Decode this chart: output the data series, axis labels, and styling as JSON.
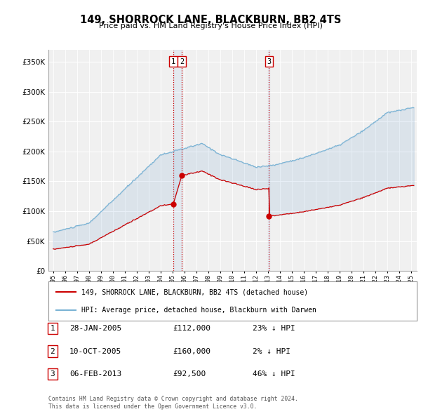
{
  "title": "149, SHORROCK LANE, BLACKBURN, BB2 4TS",
  "subtitle": "Price paid vs. HM Land Registry's House Price Index (HPI)",
  "legend_line1": "149, SHORROCK LANE, BLACKBURN, BB2 4TS (detached house)",
  "legend_line2": "HPI: Average price, detached house, Blackburn with Darwen",
  "footer1": "Contains HM Land Registry data © Crown copyright and database right 2024.",
  "footer2": "This data is licensed under the Open Government Licence v3.0.",
  "transactions": [
    {
      "num": 1,
      "date": "28-JAN-2005",
      "price": "£112,000",
      "pct": "23% ↓ HPI",
      "year": 2005.07,
      "price_val": 112000
    },
    {
      "num": 2,
      "date": "10-OCT-2005",
      "price": "£160,000",
      "pct": "2% ↓ HPI",
      "year": 2005.79,
      "price_val": 160000
    },
    {
      "num": 3,
      "date": "06-FEB-2013",
      "price": "£92,500",
      "pct": "46% ↓ HPI",
      "year": 2013.1,
      "price_val": 92500
    }
  ],
  "hpi_color": "#7ab3d4",
  "price_color": "#cc0000",
  "vline_color": "#cc0000",
  "shade_color": "#ddeeff",
  "background_chart": "#f0f0f0",
  "background_fig": "#ffffff",
  "ylim": [
    0,
    370000
  ],
  "yticks": [
    0,
    50000,
    100000,
    150000,
    200000,
    250000,
    300000,
    350000
  ],
  "xmin": 1994.6,
  "xmax": 2025.5
}
